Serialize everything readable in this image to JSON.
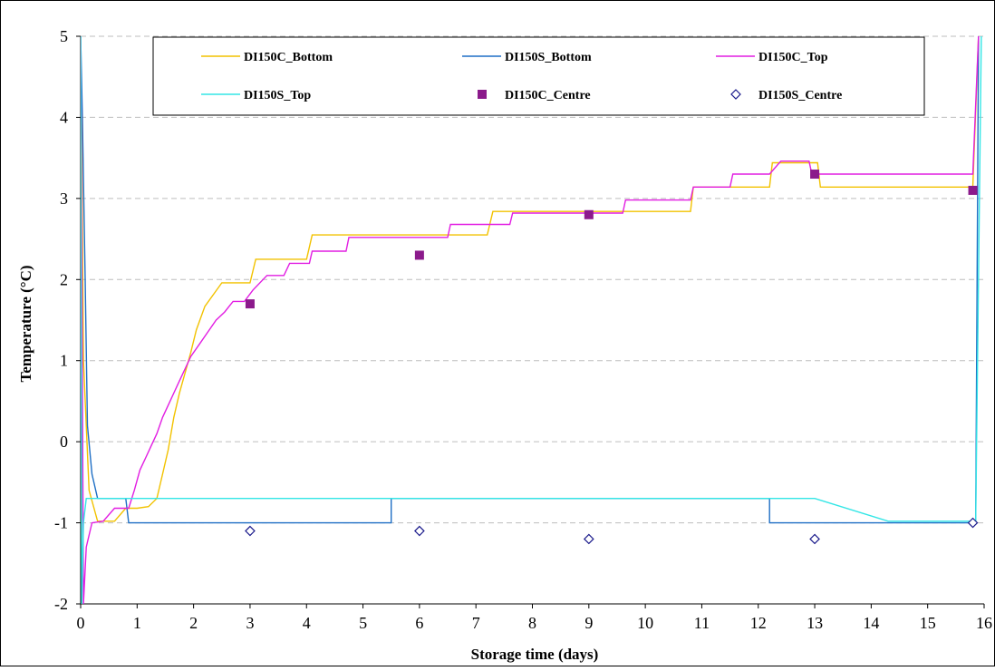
{
  "chart_data": {
    "type": "line",
    "title": "",
    "xlabel": "Storage time (days)",
    "ylabel": "Temperature (°C)",
    "xlim": [
      0,
      16
    ],
    "ylim": [
      -2,
      5
    ],
    "x_ticks": [
      0,
      1,
      2,
      3,
      4,
      5,
      6,
      7,
      8,
      9,
      10,
      11,
      12,
      13,
      14,
      15,
      16
    ],
    "y_ticks": [
      -2,
      -1,
      0,
      1,
      2,
      3,
      4,
      5
    ],
    "grid": "horizontal dashed",
    "legend_position": "top",
    "series": [
      {
        "name": "DI150C_Bottom",
        "kind": "line",
        "color": "#f2c200",
        "points": [
          [
            0,
            5.0
          ],
          [
            0.05,
            1.0
          ],
          [
            0.15,
            -0.6
          ],
          [
            0.3,
            -0.98
          ],
          [
            0.6,
            -0.98
          ],
          [
            0.8,
            -0.82
          ],
          [
            1.0,
            -0.82
          ],
          [
            1.2,
            -0.8
          ],
          [
            1.35,
            -0.7
          ],
          [
            1.45,
            -0.4
          ],
          [
            1.55,
            -0.1
          ],
          [
            1.65,
            0.3
          ],
          [
            1.75,
            0.6
          ],
          [
            1.85,
            0.85
          ],
          [
            1.95,
            1.1
          ],
          [
            2.05,
            1.38
          ],
          [
            2.2,
            1.67
          ],
          [
            2.5,
            1.96
          ],
          [
            3.0,
            1.96
          ],
          [
            3.1,
            2.25
          ],
          [
            4.0,
            2.25
          ],
          [
            4.1,
            2.55
          ],
          [
            7.2,
            2.55
          ],
          [
            7.3,
            2.84
          ],
          [
            10.8,
            2.84
          ],
          [
            10.85,
            3.14
          ],
          [
            12.2,
            3.14
          ],
          [
            12.25,
            3.44
          ],
          [
            13.05,
            3.44
          ],
          [
            13.1,
            3.14
          ],
          [
            15.8,
            3.14
          ],
          [
            15.9,
            5.0
          ]
        ]
      },
      {
        "name": "DI150S_Bottom",
        "kind": "line",
        "color": "#1f6fc5",
        "points": [
          [
            0,
            5.0
          ],
          [
            0.03,
            4.0
          ],
          [
            0.08,
            2.0
          ],
          [
            0.12,
            0.2
          ],
          [
            0.2,
            -0.4
          ],
          [
            0.3,
            -0.7
          ],
          [
            0.8,
            -0.7
          ],
          [
            0.85,
            -1.0
          ],
          [
            5.5,
            -1.0
          ],
          [
            5.5,
            -0.7
          ],
          [
            12.2,
            -0.7
          ],
          [
            12.2,
            -1.0
          ],
          [
            15.85,
            -1.0
          ],
          [
            15.9,
            5.0
          ]
        ]
      },
      {
        "name": "DI150C_Top",
        "kind": "line",
        "color": "#e21ee2",
        "points": [
          [
            0,
            5.0
          ],
          [
            0.05,
            -2.0
          ],
          [
            0.1,
            -1.3
          ],
          [
            0.2,
            -1.0
          ],
          [
            0.4,
            -0.98
          ],
          [
            0.6,
            -0.82
          ],
          [
            0.85,
            -0.82
          ],
          [
            0.95,
            -0.6
          ],
          [
            1.05,
            -0.35
          ],
          [
            1.15,
            -0.2
          ],
          [
            1.25,
            -0.05
          ],
          [
            1.35,
            0.1
          ],
          [
            1.45,
            0.3
          ],
          [
            1.55,
            0.45
          ],
          [
            1.65,
            0.6
          ],
          [
            1.75,
            0.75
          ],
          [
            1.85,
            0.9
          ],
          [
            1.95,
            1.05
          ],
          [
            2.1,
            1.2
          ],
          [
            2.25,
            1.35
          ],
          [
            2.4,
            1.5
          ],
          [
            2.55,
            1.6
          ],
          [
            2.7,
            1.73
          ],
          [
            2.9,
            1.73
          ],
          [
            3.05,
            1.87
          ],
          [
            3.3,
            2.05
          ],
          [
            3.6,
            2.05
          ],
          [
            3.7,
            2.2
          ],
          [
            4.05,
            2.2
          ],
          [
            4.1,
            2.35
          ],
          [
            4.7,
            2.35
          ],
          [
            4.75,
            2.52
          ],
          [
            6.5,
            2.52
          ],
          [
            6.55,
            2.68
          ],
          [
            7.6,
            2.68
          ],
          [
            7.65,
            2.82
          ],
          [
            9.6,
            2.82
          ],
          [
            9.65,
            2.98
          ],
          [
            10.8,
            2.98
          ],
          [
            10.85,
            3.14
          ],
          [
            11.5,
            3.14
          ],
          [
            11.55,
            3.3
          ],
          [
            12.2,
            3.3
          ],
          [
            12.4,
            3.46
          ],
          [
            12.9,
            3.46
          ],
          [
            12.95,
            3.3
          ],
          [
            15.8,
            3.3
          ],
          [
            15.9,
            5.0
          ]
        ]
      },
      {
        "name": "DI150S_Top",
        "kind": "line",
        "color": "#33e6e6",
        "points": [
          [
            0,
            5.0
          ],
          [
            0.02,
            -2.0
          ],
          [
            0.05,
            -1.0
          ],
          [
            0.1,
            -0.7
          ],
          [
            12.2,
            -0.7
          ],
          [
            13.0,
            -0.7
          ],
          [
            14.3,
            -0.98
          ],
          [
            15.85,
            -0.98
          ],
          [
            15.95,
            5.0
          ]
        ]
      },
      {
        "name": "DI150C_Centre",
        "kind": "marker",
        "marker": "square",
        "color": "#8b1a8b",
        "points": [
          [
            3,
            1.7
          ],
          [
            6,
            2.3
          ],
          [
            9,
            2.8
          ],
          [
            13,
            3.3
          ],
          [
            15.8,
            3.1
          ]
        ]
      },
      {
        "name": "DI150S_Centre",
        "kind": "marker",
        "marker": "diamond",
        "color": "#1a1a8b",
        "points": [
          [
            3,
            -1.1
          ],
          [
            6,
            -1.1
          ],
          [
            9,
            -1.2
          ],
          [
            13,
            -1.2
          ],
          [
            15.8,
            -1.0
          ]
        ]
      }
    ]
  }
}
